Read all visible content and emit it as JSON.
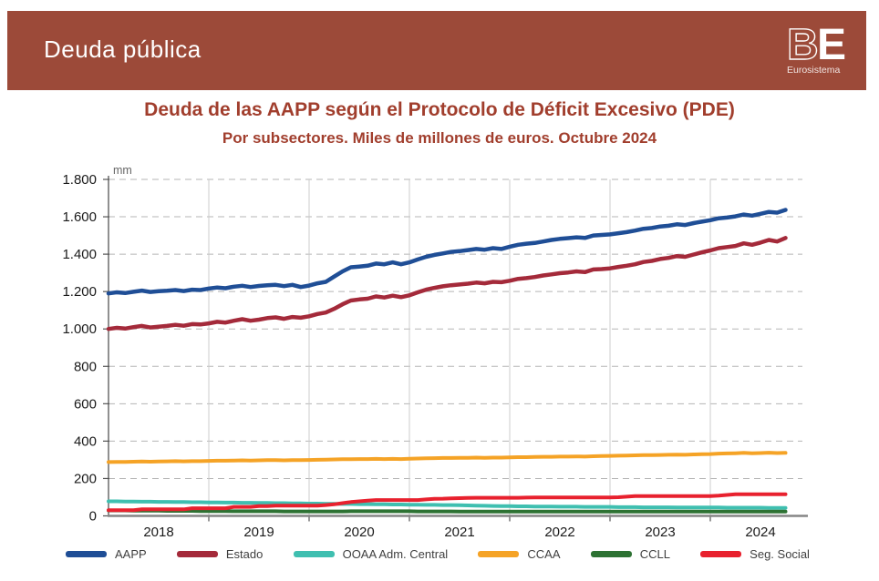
{
  "header": {
    "title": "Deuda pública",
    "bar_color": "#9C4A39",
    "logo": {
      "b": "B",
      "e": "E",
      "subtitle": "Eurosistema"
    }
  },
  "title_color": "#A13E2D",
  "chart_data": {
    "type": "line",
    "title": "Deuda de las AAPP según el Protocolo de Déficit Excesivo (PDE)",
    "subtitle": "Por subsectores. Miles de millones de euros. Octubre 2024",
    "ylabel": "mm",
    "ylim": [
      0,
      1800
    ],
    "grid": true,
    "legend_position": "bottom",
    "x_unit": "month",
    "x_start": "2018-01",
    "x_end": "2024-10",
    "y_ticks": [
      {
        "v": 0,
        "label": "0"
      },
      {
        "v": 200,
        "label": "200"
      },
      {
        "v": 400,
        "label": "400"
      },
      {
        "v": 600,
        "label": "600"
      },
      {
        "v": 800,
        "label": "800"
      },
      {
        "v": 1000,
        "label": "1.000"
      },
      {
        "v": 1200,
        "label": "1.200"
      },
      {
        "v": 1400,
        "label": "1.400"
      },
      {
        "v": 1600,
        "label": "1.600"
      },
      {
        "v": 1800,
        "label": "1.800"
      }
    ],
    "x_ticks": [
      "2018",
      "2019",
      "2020",
      "2021",
      "2022",
      "2023",
      "2024"
    ],
    "series": [
      {
        "name": "AAPP",
        "color": "#1F4E96",
        "width": 4.5,
        "values": [
          1190,
          1196,
          1192,
          1199,
          1205,
          1198,
          1202,
          1204,
          1208,
          1203,
          1210,
          1208,
          1216,
          1222,
          1218,
          1226,
          1231,
          1224,
          1230,
          1234,
          1236,
          1229,
          1236,
          1224,
          1232,
          1244,
          1252,
          1280,
          1308,
          1330,
          1334,
          1338,
          1350,
          1346,
          1356,
          1346,
          1356,
          1372,
          1386,
          1396,
          1404,
          1412,
          1416,
          1422,
          1428,
          1424,
          1432,
          1428,
          1440,
          1450,
          1456,
          1460,
          1468,
          1476,
          1482,
          1486,
          1490,
          1487,
          1500,
          1503,
          1506,
          1512,
          1518,
          1526,
          1536,
          1540,
          1548,
          1552,
          1560,
          1556,
          1566,
          1574,
          1582,
          1592,
          1596,
          1602,
          1612,
          1606,
          1616,
          1626,
          1622,
          1637
        ]
      },
      {
        "name": "Estado",
        "color": "#A42A3A",
        "width": 4.5,
        "values": [
          1000,
          1006,
          1002,
          1010,
          1016,
          1008,
          1012,
          1016,
          1022,
          1017,
          1026,
          1024,
          1030,
          1038,
          1034,
          1044,
          1052,
          1044,
          1050,
          1058,
          1062,
          1054,
          1064,
          1060,
          1068,
          1080,
          1088,
          1108,
          1132,
          1152,
          1158,
          1162,
          1174,
          1168,
          1178,
          1170,
          1180,
          1196,
          1210,
          1220,
          1228,
          1234,
          1238,
          1242,
          1248,
          1244,
          1252,
          1250,
          1258,
          1268,
          1272,
          1278,
          1286,
          1292,
          1298,
          1302,
          1308,
          1304,
          1318,
          1320,
          1324,
          1332,
          1338,
          1346,
          1358,
          1364,
          1374,
          1380,
          1390,
          1386,
          1398,
          1410,
          1420,
          1432,
          1438,
          1444,
          1458,
          1450,
          1462,
          1476,
          1468,
          1487
        ]
      },
      {
        "name": "OOAA Adm. Central",
        "color": "#3FBFB0",
        "width": 4,
        "values": [
          78,
          78,
          77,
          77,
          76,
          76,
          75,
          75,
          74,
          74,
          73,
          73,
          72,
          72,
          71,
          71,
          70,
          70,
          69,
          69,
          68,
          68,
          67,
          67,
          66,
          66,
          65,
          65,
          64,
          64,
          63,
          63,
          62,
          62,
          61,
          61,
          60,
          60,
          59,
          59,
          58,
          58,
          57,
          56,
          55,
          54,
          53,
          52,
          52,
          51,
          51,
          50,
          50,
          50,
          49,
          49,
          49,
          48,
          48,
          48,
          48,
          47,
          47,
          47,
          46,
          46,
          46,
          46,
          45,
          45,
          45,
          45,
          45,
          45,
          44,
          44,
          44,
          44,
          44,
          43,
          43,
          43
        ]
      },
      {
        "name": "CCAA",
        "color": "#F5A326",
        "width": 4,
        "values": [
          288,
          289,
          289,
          290,
          291,
          290,
          291,
          292,
          293,
          292,
          293,
          293,
          294,
          295,
          295,
          296,
          297,
          296,
          297,
          298,
          298,
          297,
          298,
          298,
          299,
          300,
          301,
          302,
          303,
          303,
          304,
          304,
          305,
          304,
          305,
          304,
          306,
          307,
          308,
          309,
          310,
          310,
          311,
          311,
          312,
          311,
          312,
          312,
          313,
          314,
          314,
          315,
          316,
          316,
          317,
          317,
          318,
          317,
          319,
          320,
          321,
          322,
          323,
          324,
          325,
          325,
          326,
          327,
          328,
          327,
          329,
          330,
          331,
          333,
          334,
          335,
          337,
          335,
          336,
          338,
          336,
          337
        ]
      },
      {
        "name": "CCLL",
        "color": "#2D7233",
        "width": 4,
        "values": [
          29,
          29,
          29,
          28,
          28,
          28,
          28,
          27,
          27,
          27,
          27,
          26,
          26,
          26,
          26,
          25,
          25,
          25,
          25,
          25,
          25,
          24,
          24,
          24,
          24,
          24,
          24,
          24,
          24,
          25,
          25,
          25,
          25,
          25,
          25,
          25,
          25,
          24,
          24,
          24,
          24,
          24,
          23,
          23,
          23,
          23,
          23,
          23,
          23,
          23,
          23,
          23,
          23,
          23,
          23,
          23,
          23,
          23,
          23,
          23,
          23,
          23,
          23,
          23,
          23,
          23,
          23,
          23,
          23,
          23,
          23,
          23,
          23,
          23,
          23,
          23,
          23,
          23,
          23,
          23,
          23,
          23
        ]
      },
      {
        "name": "Seg. Social",
        "color": "#E8212E",
        "width": 4,
        "values": [
          30,
          30,
          30,
          30,
          35,
          35,
          35,
          35,
          35,
          35,
          41,
          41,
          41,
          41,
          41,
          48,
          48,
          48,
          52,
          52,
          55,
          55,
          55,
          55,
          55,
          55,
          58,
          62,
          68,
          74,
          78,
          82,
          85,
          85,
          85,
          85,
          85,
          85,
          88,
          91,
          92,
          94,
          95,
          96,
          97,
          97,
          97,
          97,
          97,
          97,
          98,
          99,
          99,
          99,
          99,
          99,
          99,
          99,
          99,
          99,
          99,
          100,
          103,
          106,
          106,
          106,
          106,
          106,
          106,
          106,
          106,
          106,
          106,
          108,
          112,
          116,
          116,
          116,
          116,
          116,
          116,
          116
        ]
      }
    ]
  }
}
